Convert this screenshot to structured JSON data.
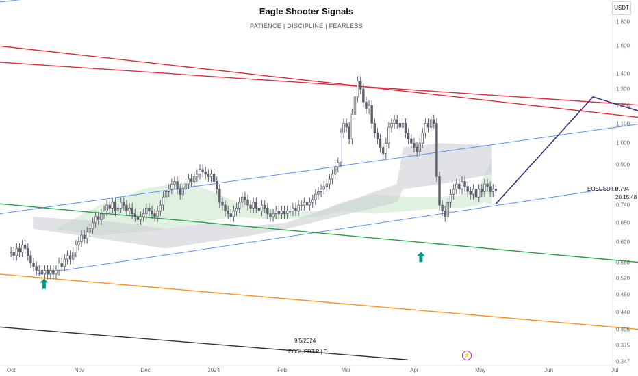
{
  "header": {
    "title": "Eagle Shooter Signals",
    "subtitle": "PATIENCE  |  DISCIPLINE  |  FEARLESS"
  },
  "price_axis": {
    "currency": "USDT"
  },
  "symbol_label": "EOSUSDT.P",
  "last_price": "0.794",
  "countdown": "20:15:48",
  "watermark": {
    "date": "9/5/2024",
    "symbol": "EOSUSDT.P  |  D"
  },
  "lightning_icon": "lightning-icon",
  "colors": {
    "candle": "#5d606b",
    "cloud_green": "#c8e6c9",
    "cloud_gray": "#c9cbd0",
    "blue_line": "#5b8def",
    "red_line": "#e0283a",
    "green_line": "#22a045",
    "orange_line": "#f7931a",
    "black_line": "#333333",
    "projection": "#3b2f78",
    "arrow": "#089981"
  },
  "chart_data": {
    "type": "candlestick",
    "scale": "log",
    "ylim": [
      0.34,
      2.0
    ],
    "y_ticks": [
      "1.800",
      "1.600",
      "1.400",
      "1.300",
      "1.200",
      "1.100",
      "1.000",
      "0.900",
      "0.794",
      "0.740",
      "0.680",
      "0.620",
      "0.560",
      "0.520",
      "0.480",
      "0.440",
      "0.405",
      "0.375",
      "0.347"
    ],
    "x_ticks": [
      "Oct",
      "Nov",
      "Dec",
      "2024",
      "Feb",
      "Mar",
      "Apr",
      "May",
      "Jun",
      "Jul"
    ],
    "x_range_days": [
      -5,
      273
    ],
    "x_tick_days": [
      0,
      31,
      61,
      92,
      123,
      152,
      183,
      213,
      244,
      274
    ],
    "candles_close": [
      0.59,
      0.58,
      0.6,
      0.59,
      0.61,
      0.6,
      0.58,
      0.56,
      0.55,
      0.54,
      0.54,
      0.53,
      0.54,
      0.53,
      0.54,
      0.53,
      0.54,
      0.56,
      0.55,
      0.57,
      0.58,
      0.57,
      0.59,
      0.61,
      0.62,
      0.64,
      0.63,
      0.65,
      0.66,
      0.68,
      0.7,
      0.69,
      0.71,
      0.72,
      0.74,
      0.73,
      0.75,
      0.72,
      0.73,
      0.75,
      0.74,
      0.72,
      0.73,
      0.71,
      0.7,
      0.69,
      0.7,
      0.71,
      0.73,
      0.72,
      0.71,
      0.7,
      0.72,
      0.74,
      0.77,
      0.79,
      0.8,
      0.82,
      0.83,
      0.8,
      0.78,
      0.8,
      0.82,
      0.84,
      0.83,
      0.85,
      0.86,
      0.88,
      0.87,
      0.86,
      0.85,
      0.86,
      0.83,
      0.8,
      0.75,
      0.74,
      0.72,
      0.71,
      0.7,
      0.72,
      0.73,
      0.75,
      0.77,
      0.76,
      0.74,
      0.73,
      0.75,
      0.73,
      0.72,
      0.74,
      0.73,
      0.71,
      0.7,
      0.71,
      0.72,
      0.71,
      0.72,
      0.71,
      0.72,
      0.72,
      0.73,
      0.72,
      0.74,
      0.74,
      0.75,
      0.74,
      0.75,
      0.76,
      0.78,
      0.79,
      0.8,
      0.81,
      0.82,
      0.84,
      0.86,
      0.89,
      0.91,
      1.05,
      1.1,
      1.08,
      1.02,
      1.15,
      1.25,
      1.35,
      1.3,
      1.22,
      1.18,
      1.2,
      1.1,
      1.05,
      1.02,
      0.98,
      0.95,
      1.0,
      1.08,
      1.1,
      1.12,
      1.1,
      1.08,
      1.1,
      1.05,
      1.02,
      1.0,
      0.98,
      0.96,
      1.0,
      1.05,
      1.1,
      1.08,
      1.12,
      1.1,
      0.85,
      0.74,
      0.72,
      0.7,
      0.75,
      0.78,
      0.8,
      0.82,
      0.8,
      0.83,
      0.81,
      0.79,
      0.78,
      0.8,
      0.77,
      0.8,
      0.79,
      0.82,
      0.81,
      0.79,
      0.8,
      0.794
    ],
    "cloud_green_top": [
      [
        -5,
        0.68
      ],
      [
        20,
        0.66
      ],
      [
        40,
        0.74
      ],
      [
        60,
        0.8
      ],
      [
        80,
        0.83
      ],
      [
        100,
        0.76
      ],
      [
        120,
        0.72
      ],
      [
        140,
        0.72
      ],
      [
        150,
        0.75
      ],
      [
        165,
        0.78
      ],
      [
        180,
        0.77
      ],
      [
        195,
        0.77
      ],
      [
        205,
        0.78
      ],
      [
        212,
        0.8
      ],
      [
        215,
        0.86
      ],
      [
        218,
        0.92
      ]
    ],
    "cloud_green_bottom": [
      [
        -5,
        0.68
      ],
      [
        20,
        0.66
      ],
      [
        40,
        0.64
      ],
      [
        60,
        0.65
      ],
      [
        80,
        0.67
      ],
      [
        100,
        0.7
      ],
      [
        120,
        0.69
      ],
      [
        140,
        0.7
      ],
      [
        150,
        0.72
      ],
      [
        165,
        0.71
      ],
      [
        180,
        0.72
      ],
      [
        195,
        0.73
      ],
      [
        205,
        0.73
      ],
      [
        212,
        0.74
      ],
      [
        215,
        0.75
      ],
      [
        218,
        0.74
      ]
    ],
    "cloud_gray_top": [
      [
        10,
        0.7
      ],
      [
        30,
        0.69
      ],
      [
        50,
        0.68
      ],
      [
        70,
        0.66
      ],
      [
        90,
        0.68
      ],
      [
        110,
        0.67
      ],
      [
        125,
        0.68
      ],
      [
        175,
        0.82
      ],
      [
        178,
        0.98
      ],
      [
        195,
        1.0
      ],
      [
        218,
        0.99
      ]
    ],
    "cloud_gray_bottom": [
      [
        10,
        0.66
      ],
      [
        30,
        0.64
      ],
      [
        50,
        0.62
      ],
      [
        70,
        0.6
      ],
      [
        90,
        0.62
      ],
      [
        110,
        0.64
      ],
      [
        125,
        0.66
      ],
      [
        175,
        0.75
      ],
      [
        178,
        0.8
      ],
      [
        195,
        0.82
      ],
      [
        218,
        0.86
      ]
    ],
    "trend_lines": [
      {
        "color": "blue_line",
        "points": [
          [
            -5,
            1.98
          ],
          [
            80,
            2.2
          ]
        ]
      },
      {
        "color": "red_line",
        "points": [
          [
            -5,
            1.6
          ],
          [
            287,
            1.13
          ]
        ]
      },
      {
        "color": "red_line",
        "points": [
          [
            -5,
            1.48
          ],
          [
            287,
            1.2
          ]
        ]
      },
      {
        "color": "blue_line",
        "points": [
          [
            -5,
            0.71
          ],
          [
            287,
            1.1
          ]
        ]
      },
      {
        "color": "blue_line",
        "points": [
          [
            12,
            0.53
          ],
          [
            270,
            0.8
          ]
        ]
      },
      {
        "color": "green_line",
        "points": [
          [
            -5,
            0.745
          ],
          [
            287,
            0.56
          ]
        ]
      },
      {
        "color": "orange_line",
        "points": [
          [
            -5,
            0.53
          ],
          [
            287,
            0.405
          ]
        ]
      },
      {
        "color": "black_line",
        "points": [
          [
            -5,
            0.41
          ],
          [
            180,
            0.35
          ]
        ]
      }
    ],
    "projection": [
      [
        220,
        0.745
      ],
      [
        264,
        1.25
      ],
      [
        287,
        1.16
      ]
    ],
    "arrows": [
      [
        15,
        0.505
      ],
      [
        186,
        0.575
      ]
    ]
  }
}
